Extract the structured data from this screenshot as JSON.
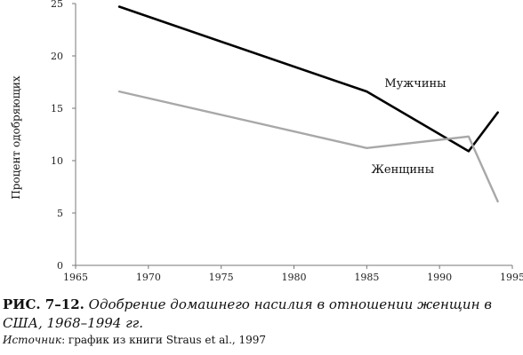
{
  "chart_data": {
    "type": "line",
    "ylabel": "Процент одобряющих",
    "xlabel": "",
    "xlim": [
      1965,
      1995
    ],
    "ylim": [
      0,
      25
    ],
    "x_ticks": [
      1965,
      1970,
      1975,
      1980,
      1985,
      1990,
      1995
    ],
    "y_ticks": [
      0,
      5,
      10,
      15,
      20,
      25
    ],
    "y_tick_labels": [
      "0",
      "5",
      "10",
      "15",
      "20",
      "25"
    ],
    "grid": false,
    "series": [
      {
        "name": "Мужчины",
        "color": "#000000",
        "points": [
          [
            1968,
            24.7
          ],
          [
            1985,
            16.6
          ],
          [
            1992,
            10.9
          ],
          [
            1994,
            14.6
          ]
        ]
      },
      {
        "name": "Женщины",
        "color": "#a8a8a8",
        "points": [
          [
            1968,
            16.6
          ],
          [
            1985,
            11.2
          ],
          [
            1992,
            12.3
          ],
          [
            1994,
            6.1
          ]
        ]
      }
    ]
  },
  "caption": {
    "fig_id": "РИС. 7–12.",
    "text": "Одобрение домашнего насилия в отношении женщин в США, 1968–1994 гг."
  },
  "source": {
    "label": "Источник",
    "text": ": график из книги Straus et al., 1997"
  }
}
